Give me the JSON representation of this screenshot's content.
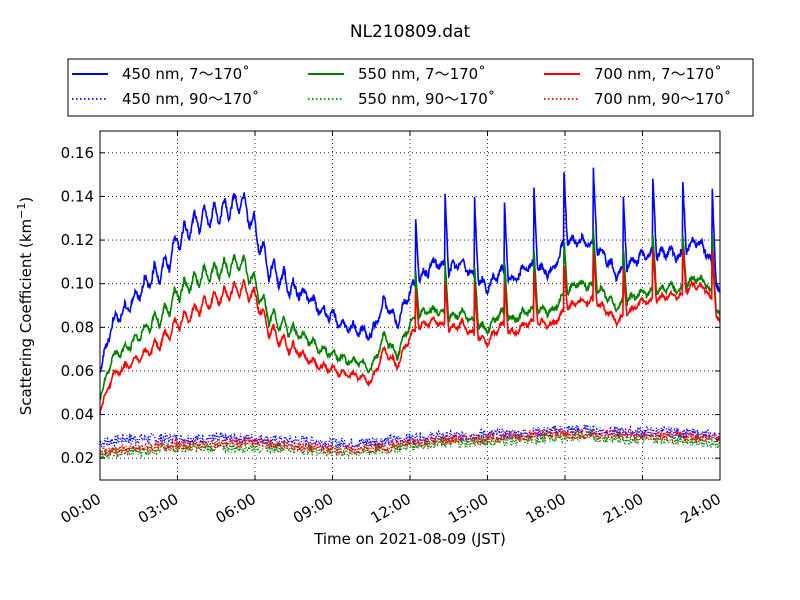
{
  "chart_data": {
    "type": "line",
    "title": "NL210809.dat",
    "xlabel": "Time on 2021-08-09 (JST)",
    "ylabel": "Scattering Coefficient (km",
    "ylabel_sup": "−1",
    "ylabel_close": ")",
    "xlim": [
      0,
      24
    ],
    "ylim": [
      0.01,
      0.17
    ],
    "x_ticks": [
      0,
      3,
      6,
      9,
      12,
      15,
      18,
      21,
      24
    ],
    "x_tick_labels": [
      "00:00",
      "03:00",
      "06:00",
      "09:00",
      "12:00",
      "15:00",
      "18:00",
      "21:00",
      "24:00"
    ],
    "y_ticks": [
      0.02,
      0.04,
      0.06,
      0.08,
      0.1,
      0.12,
      0.14,
      0.16
    ],
    "y_tick_labels": [
      "0.02",
      "0.04",
      "0.06",
      "0.08",
      "0.10",
      "0.12",
      "0.14",
      "0.16"
    ],
    "grid": true,
    "legend_position": "top",
    "series": [
      {
        "name": "450 nm, 7～170˚",
        "color": "#0000ff",
        "style": "solid",
        "x": [
          0,
          0.5,
          1,
          1.5,
          2,
          2.5,
          3,
          3.5,
          4,
          4.5,
          5,
          5.5,
          6,
          6.5,
          7,
          7.5,
          8,
          8.5,
          9,
          9.5,
          10,
          10.5,
          11,
          11.5,
          12,
          12.5,
          13,
          13.5,
          14,
          14.5,
          15,
          15.5,
          16,
          16.5,
          17,
          17.5,
          18,
          18.5,
          19,
          19.5,
          20,
          20.5,
          21,
          21.5,
          22,
          22.5,
          23,
          23.5,
          24
        ],
        "y": [
          0.06,
          0.083,
          0.088,
          0.096,
          0.103,
          0.107,
          0.12,
          0.126,
          0.13,
          0.132,
          0.135,
          0.138,
          0.125,
          0.108,
          0.103,
          0.097,
          0.095,
          0.088,
          0.085,
          0.08,
          0.079,
          0.076,
          0.092,
          0.082,
          0.097,
          0.104,
          0.11,
          0.106,
          0.11,
          0.103,
          0.098,
          0.106,
          0.101,
          0.108,
          0.107,
          0.105,
          0.119,
          0.12,
          0.118,
          0.114,
          0.104,
          0.109,
          0.113,
          0.113,
          0.115,
          0.112,
          0.12,
          0.115,
          0.095
        ]
      },
      {
        "name": "550 nm, 7～170˚",
        "color": "#008000",
        "style": "solid",
        "x": [
          0,
          0.5,
          1,
          1.5,
          2,
          2.5,
          3,
          3.5,
          4,
          4.5,
          5,
          5.5,
          6,
          6.5,
          7,
          7.5,
          8,
          8.5,
          9,
          9.5,
          10,
          10.5,
          11,
          11.5,
          12,
          12.5,
          13,
          13.5,
          14,
          14.5,
          15,
          15.5,
          16,
          16.5,
          17,
          17.5,
          18,
          18.5,
          19,
          19.5,
          20,
          20.5,
          21,
          21.5,
          22,
          22.5,
          23,
          23.5,
          24
        ],
        "y": [
          0.048,
          0.067,
          0.07,
          0.076,
          0.082,
          0.086,
          0.096,
          0.1,
          0.104,
          0.106,
          0.108,
          0.11,
          0.1,
          0.086,
          0.082,
          0.078,
          0.075,
          0.07,
          0.068,
          0.065,
          0.064,
          0.061,
          0.076,
          0.067,
          0.082,
          0.087,
          0.088,
          0.084,
          0.087,
          0.082,
          0.079,
          0.087,
          0.083,
          0.088,
          0.088,
          0.087,
          0.096,
          0.1,
          0.099,
          0.096,
          0.089,
          0.093,
          0.096,
          0.096,
          0.099,
          0.097,
          0.103,
          0.1,
          0.085
        ]
      },
      {
        "name": "700 nm, 7～170˚",
        "color": "#ff0000",
        "style": "solid",
        "x": [
          0,
          0.5,
          1,
          1.5,
          2,
          2.5,
          3,
          3.5,
          4,
          4.5,
          5,
          5.5,
          6,
          6.5,
          7,
          7.5,
          8,
          8.5,
          9,
          9.5,
          10,
          10.5,
          11,
          11.5,
          12,
          12.5,
          13,
          13.5,
          14,
          14.5,
          15,
          15.5,
          16,
          16.5,
          17,
          17.5,
          18,
          18.5,
          19,
          19.5,
          20,
          20.5,
          21,
          21.5,
          22,
          22.5,
          23,
          23.5,
          24
        ],
        "y": [
          0.042,
          0.058,
          0.062,
          0.066,
          0.07,
          0.075,
          0.082,
          0.086,
          0.09,
          0.093,
          0.096,
          0.098,
          0.094,
          0.08,
          0.074,
          0.07,
          0.066,
          0.062,
          0.061,
          0.058,
          0.058,
          0.055,
          0.07,
          0.062,
          0.076,
          0.081,
          0.083,
          0.079,
          0.082,
          0.076,
          0.073,
          0.081,
          0.077,
          0.082,
          0.082,
          0.081,
          0.088,
          0.092,
          0.092,
          0.089,
          0.083,
          0.087,
          0.092,
          0.092,
          0.095,
          0.094,
          0.1,
          0.097,
          0.082
        ]
      },
      {
        "name": "450 nm, 90～170˚",
        "color": "#0000ff",
        "style": "dotted",
        "x": [
          0,
          1,
          2,
          3,
          4,
          5,
          6,
          7,
          8,
          9,
          10,
          11,
          12,
          13,
          14,
          15,
          16,
          17,
          18,
          19,
          20,
          21,
          22,
          23,
          24
        ],
        "y": [
          0.027,
          0.029,
          0.029,
          0.029,
          0.029,
          0.029,
          0.029,
          0.028,
          0.028,
          0.027,
          0.027,
          0.028,
          0.029,
          0.03,
          0.03,
          0.031,
          0.031,
          0.032,
          0.033,
          0.033,
          0.032,
          0.032,
          0.032,
          0.031,
          0.03
        ]
      },
      {
        "name": "550 nm, 90～170˚",
        "color": "#008000",
        "style": "dotted",
        "x": [
          0,
          1,
          2,
          3,
          4,
          5,
          6,
          7,
          8,
          9,
          10,
          11,
          12,
          13,
          14,
          15,
          16,
          17,
          18,
          19,
          20,
          21,
          22,
          23,
          24
        ],
        "y": [
          0.022,
          0.023,
          0.024,
          0.025,
          0.025,
          0.025,
          0.025,
          0.025,
          0.024,
          0.023,
          0.023,
          0.024,
          0.026,
          0.027,
          0.027,
          0.028,
          0.028,
          0.029,
          0.03,
          0.03,
          0.029,
          0.029,
          0.029,
          0.028,
          0.027
        ]
      },
      {
        "name": "700 nm, 90～170˚",
        "color": "#ff0000",
        "style": "dotted",
        "x": [
          0,
          1,
          2,
          3,
          4,
          5,
          6,
          7,
          8,
          9,
          10,
          11,
          12,
          13,
          14,
          15,
          16,
          17,
          18,
          19,
          20,
          21,
          22,
          23,
          24
        ],
        "y": [
          0.023,
          0.024,
          0.025,
          0.026,
          0.026,
          0.027,
          0.027,
          0.026,
          0.025,
          0.024,
          0.024,
          0.025,
          0.027,
          0.028,
          0.029,
          0.029,
          0.03,
          0.031,
          0.031,
          0.031,
          0.031,
          0.03,
          0.03,
          0.03,
          0.029
        ]
      }
    ]
  }
}
